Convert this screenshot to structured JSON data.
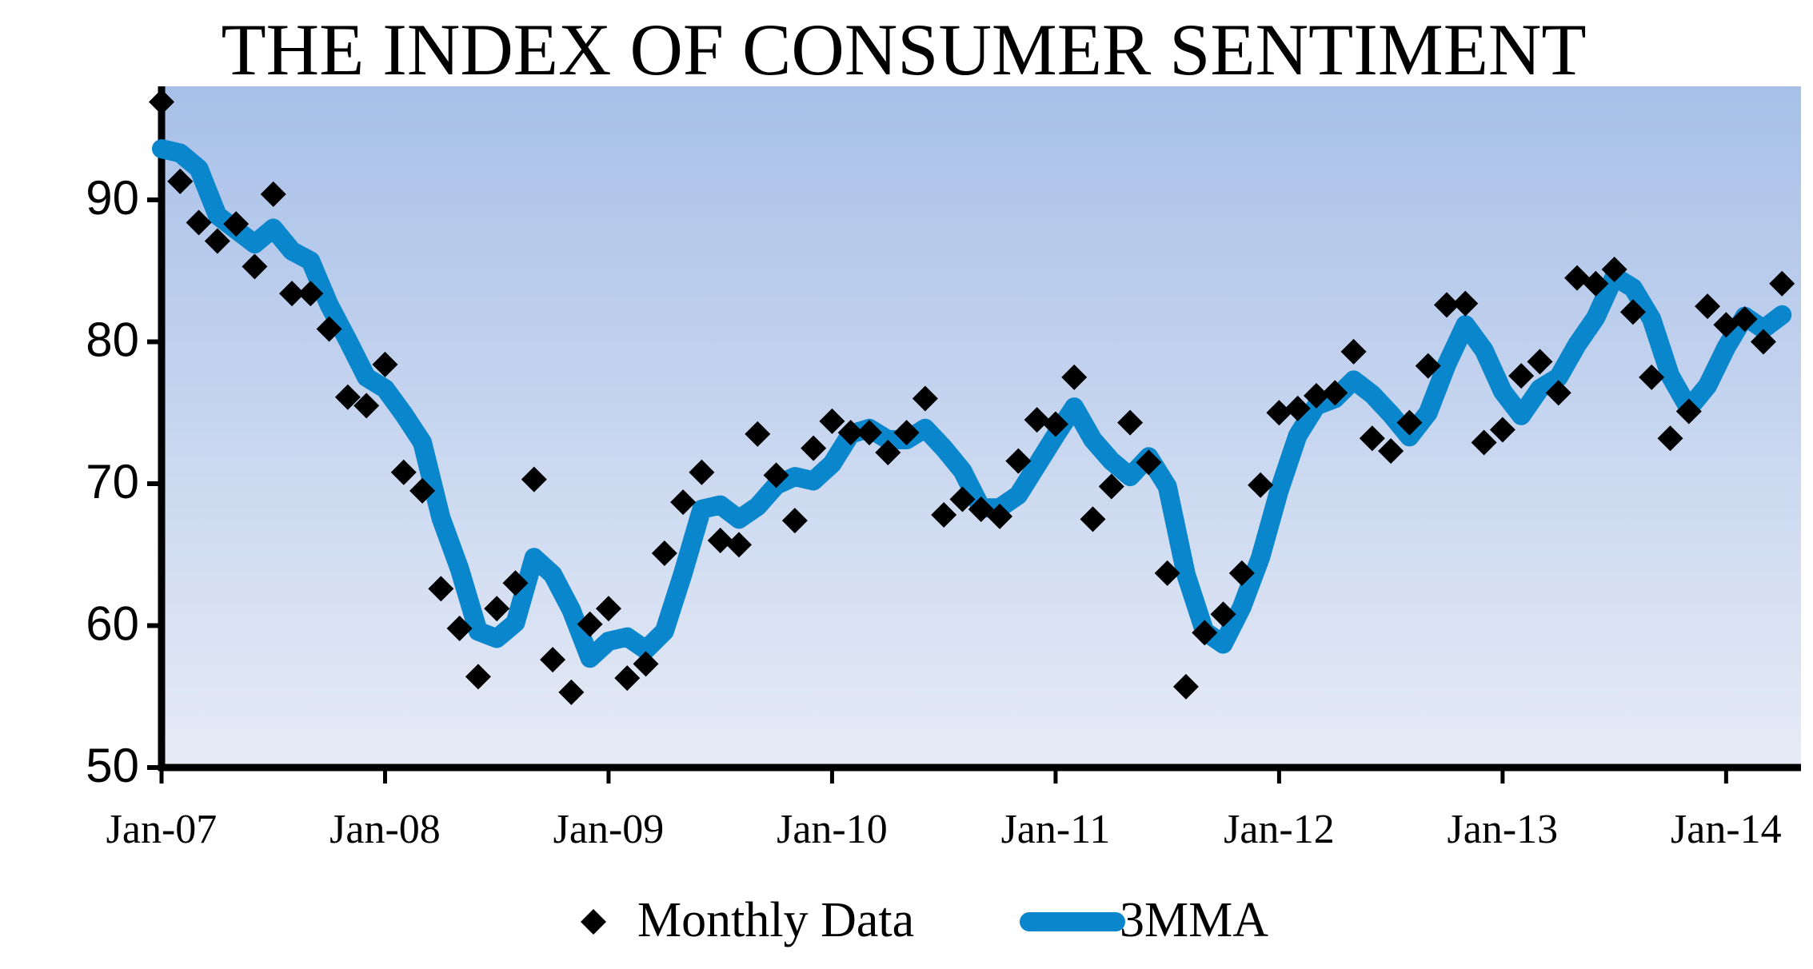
{
  "chart_data": {
    "type": "line",
    "title": "THE INDEX OF CONSUMER SENTIMENT",
    "categories": [
      "Jan-07",
      null,
      null,
      null,
      null,
      null,
      null,
      null,
      null,
      null,
      null,
      null,
      "Jan-08",
      null,
      null,
      null,
      null,
      null,
      null,
      null,
      null,
      null,
      null,
      null,
      "Jan-09",
      null,
      null,
      null,
      null,
      null,
      null,
      null,
      null,
      null,
      null,
      null,
      "Jan-10",
      null,
      null,
      null,
      null,
      null,
      null,
      null,
      null,
      null,
      null,
      null,
      "Jan-11",
      null,
      null,
      null,
      null,
      null,
      null,
      null,
      null,
      null,
      null,
      null,
      "Jan-12",
      null,
      null,
      null,
      null,
      null,
      null,
      null,
      null,
      null,
      null,
      null,
      "Jan-13",
      null,
      null,
      null,
      null,
      null,
      null,
      null,
      null,
      null,
      null,
      null,
      "Jan-14",
      null,
      null,
      null
    ],
    "series": [
      {
        "name": "Monthly Data",
        "mode": "markers",
        "color": "#000000",
        "values": [
          96.9,
          91.3,
          88.4,
          87.1,
          88.3,
          85.3,
          90.4,
          83.4,
          83.4,
          80.9,
          76.1,
          75.5,
          78.4,
          70.8,
          69.5,
          62.6,
          59.8,
          56.4,
          61.2,
          63.0,
          70.3,
          57.6,
          55.3,
          60.1,
          61.2,
          56.3,
          57.3,
          65.1,
          68.7,
          70.8,
          66.0,
          65.7,
          73.5,
          70.6,
          67.4,
          72.5,
          74.4,
          73.6,
          73.6,
          72.2,
          73.6,
          76.0,
          67.8,
          68.9,
          68.2,
          67.7,
          71.6,
          74.5,
          74.2,
          77.5,
          67.5,
          69.8,
          74.3,
          71.5,
          63.7,
          55.7,
          59.5,
          60.8,
          63.7,
          69.9,
          75.0,
          75.3,
          76.2,
          76.4,
          79.3,
          73.2,
          72.3,
          74.3,
          78.3,
          82.6,
          82.7,
          72.9,
          73.8,
          77.6,
          78.6,
          76.4,
          84.5,
          84.1,
          85.1,
          82.1,
          77.5,
          73.2,
          75.1,
          82.5,
          81.2,
          81.6,
          80.0,
          84.1
        ]
      },
      {
        "name": "3MMA",
        "mode": "lines",
        "color": "#0a86cc",
        "values": [
          93.6,
          93.3,
          92.2,
          88.9,
          87.9,
          86.9,
          88.0,
          86.4,
          85.7,
          82.6,
          80.1,
          77.5,
          76.7,
          74.9,
          72.9,
          67.6,
          64.0,
          59.6,
          59.1,
          60.2,
          64.8,
          63.6,
          61.1,
          57.7,
          58.9,
          59.2,
          58.3,
          59.6,
          63.7,
          68.2,
          68.5,
          67.5,
          68.4,
          69.9,
          70.5,
          70.2,
          71.4,
          73.5,
          73.9,
          73.1,
          73.1,
          73.9,
          72.5,
          70.9,
          68.3,
          68.3,
          69.2,
          71.3,
          73.4,
          75.4,
          73.1,
          71.6,
          70.5,
          71.9,
          69.8,
          63.6,
          59.6,
          58.7,
          61.3,
          64.8,
          69.5,
          73.4,
          75.5,
          76.0,
          77.3,
          76.3,
          74.9,
          73.3,
          75.0,
          78.4,
          81.2,
          79.4,
          76.5,
          74.8,
          76.7,
          77.5,
          79.8,
          81.7,
          84.6,
          83.8,
          81.6,
          77.6,
          75.3,
          76.9,
          79.6,
          81.8,
          80.9,
          81.9
        ]
      }
    ],
    "ylim": [
      50,
      98
    ],
    "yticks": [
      50,
      60,
      70,
      80,
      90
    ]
  }
}
